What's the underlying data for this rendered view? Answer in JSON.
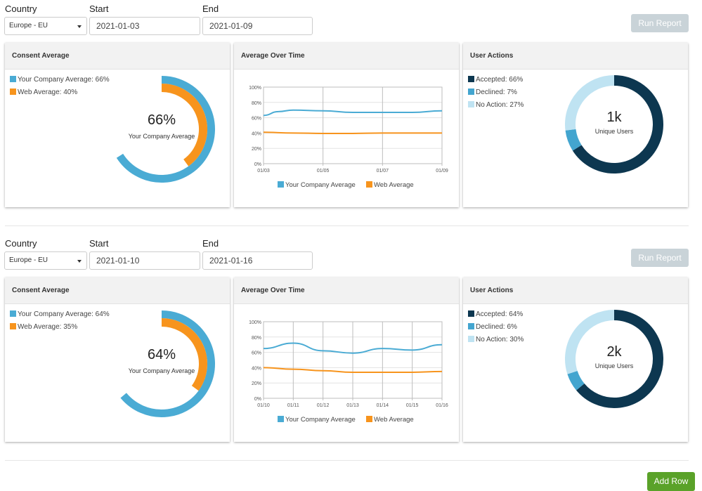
{
  "labels": {
    "country": "Country",
    "start": "Start",
    "end": "End"
  },
  "run_report_label": "Run Report",
  "add_row_label": "Add Row",
  "colors": {
    "company": "#4aabd4",
    "web": "#f7941d",
    "accepted": "#0d3750",
    "declined": "#43a5cf",
    "no_action": "#bfe3f2",
    "grid": "#cccccc",
    "add_button": "#5aa229",
    "run_button": "#c9d3d8"
  },
  "rows": [
    {
      "country": "Europe - EU",
      "start": "2021-01-03",
      "end": "2021-01-09",
      "consent": {
        "title": "Consent Average",
        "company_label": "Your Company Average: 66%",
        "web_label": "Web Average: 40%",
        "company_value": 66,
        "web_value": 40,
        "big": "66%",
        "sub": "Your Company Average"
      },
      "over_time": {
        "title": "Average Over Time",
        "chart_data": {
          "type": "line",
          "x": [
            "01/03",
            "01/05",
            "01/07",
            "01/09"
          ],
          "ylim": [
            0,
            100
          ],
          "y_ticks": [
            "0%",
            "20%",
            "40%",
            "60%",
            "80%",
            "100%"
          ],
          "series": [
            {
              "name": "Your Company Average",
              "values": [
                [
                  0,
                  63
                ],
                [
                  0.5,
                  68
                ],
                [
                  1,
                  70
                ],
                [
                  2,
                  69
                ],
                [
                  3,
                  67
                ],
                [
                  4,
                  67
                ],
                [
                  5,
                  67
                ],
                [
                  6,
                  69
                ]
              ]
            },
            {
              "name": "Web Average",
              "values": [
                [
                  0,
                  41
                ],
                [
                  1,
                  40
                ],
                [
                  2,
                  39.5
                ],
                [
                  3,
                  39.5
                ],
                [
                  4,
                  40
                ],
                [
                  5,
                  40
                ],
                [
                  6,
                  40
                ]
              ]
            }
          ],
          "x_index": [
            0,
            2,
            4,
            6
          ],
          "x_max": 6,
          "legend": "bottom",
          "grid": true
        }
      },
      "actions": {
        "title": "User Actions",
        "accepted_label": "Accepted: 66%",
        "declined_label": "Declined: 7%",
        "no_action_label": "No Action: 27%",
        "accepted": 66,
        "declined": 7,
        "no_action": 27,
        "big": "1k",
        "sub": "Unique Users"
      }
    },
    {
      "country": "Europe - EU",
      "start": "2021-01-10",
      "end": "2021-01-16",
      "consent": {
        "title": "Consent Average",
        "company_label": "Your Company Average: 64%",
        "web_label": "Web Average: 35%",
        "company_value": 64,
        "web_value": 35,
        "big": "64%",
        "sub": "Your Company Average"
      },
      "over_time": {
        "title": "Average Over Time",
        "chart_data": {
          "type": "line",
          "x": [
            "01/10",
            "01/11",
            "01/12",
            "01/13",
            "01/14",
            "01/15",
            "01/16"
          ],
          "ylim": [
            0,
            100
          ],
          "y_ticks": [
            "0%",
            "20%",
            "40%",
            "60%",
            "80%",
            "100%"
          ],
          "series": [
            {
              "name": "Your Company Average",
              "values": [
                [
                  0,
                  65
                ],
                [
                  1,
                  72
                ],
                [
                  2,
                  62
                ],
                [
                  3,
                  59
                ],
                [
                  4,
                  65
                ],
                [
                  5,
                  63
                ],
                [
                  6,
                  70
                ]
              ]
            },
            {
              "name": "Web Average",
              "values": [
                [
                  0,
                  40
                ],
                [
                  1,
                  38
                ],
                [
                  2,
                  36
                ],
                [
                  3,
                  34
                ],
                [
                  4,
                  34
                ],
                [
                  5,
                  34
                ],
                [
                  6,
                  35
                ]
              ]
            }
          ],
          "x_index": [
            0,
            1,
            2,
            3,
            4,
            5,
            6
          ],
          "x_max": 6,
          "legend": "bottom",
          "grid": true
        }
      },
      "actions": {
        "title": "User Actions",
        "accepted_label": "Accepted: 64%",
        "declined_label": "Declined: 6%",
        "no_action_label": "No Action: 30%",
        "accepted": 64,
        "declined": 6,
        "no_action": 30,
        "big": "2k",
        "sub": "Unique Users"
      }
    }
  ]
}
